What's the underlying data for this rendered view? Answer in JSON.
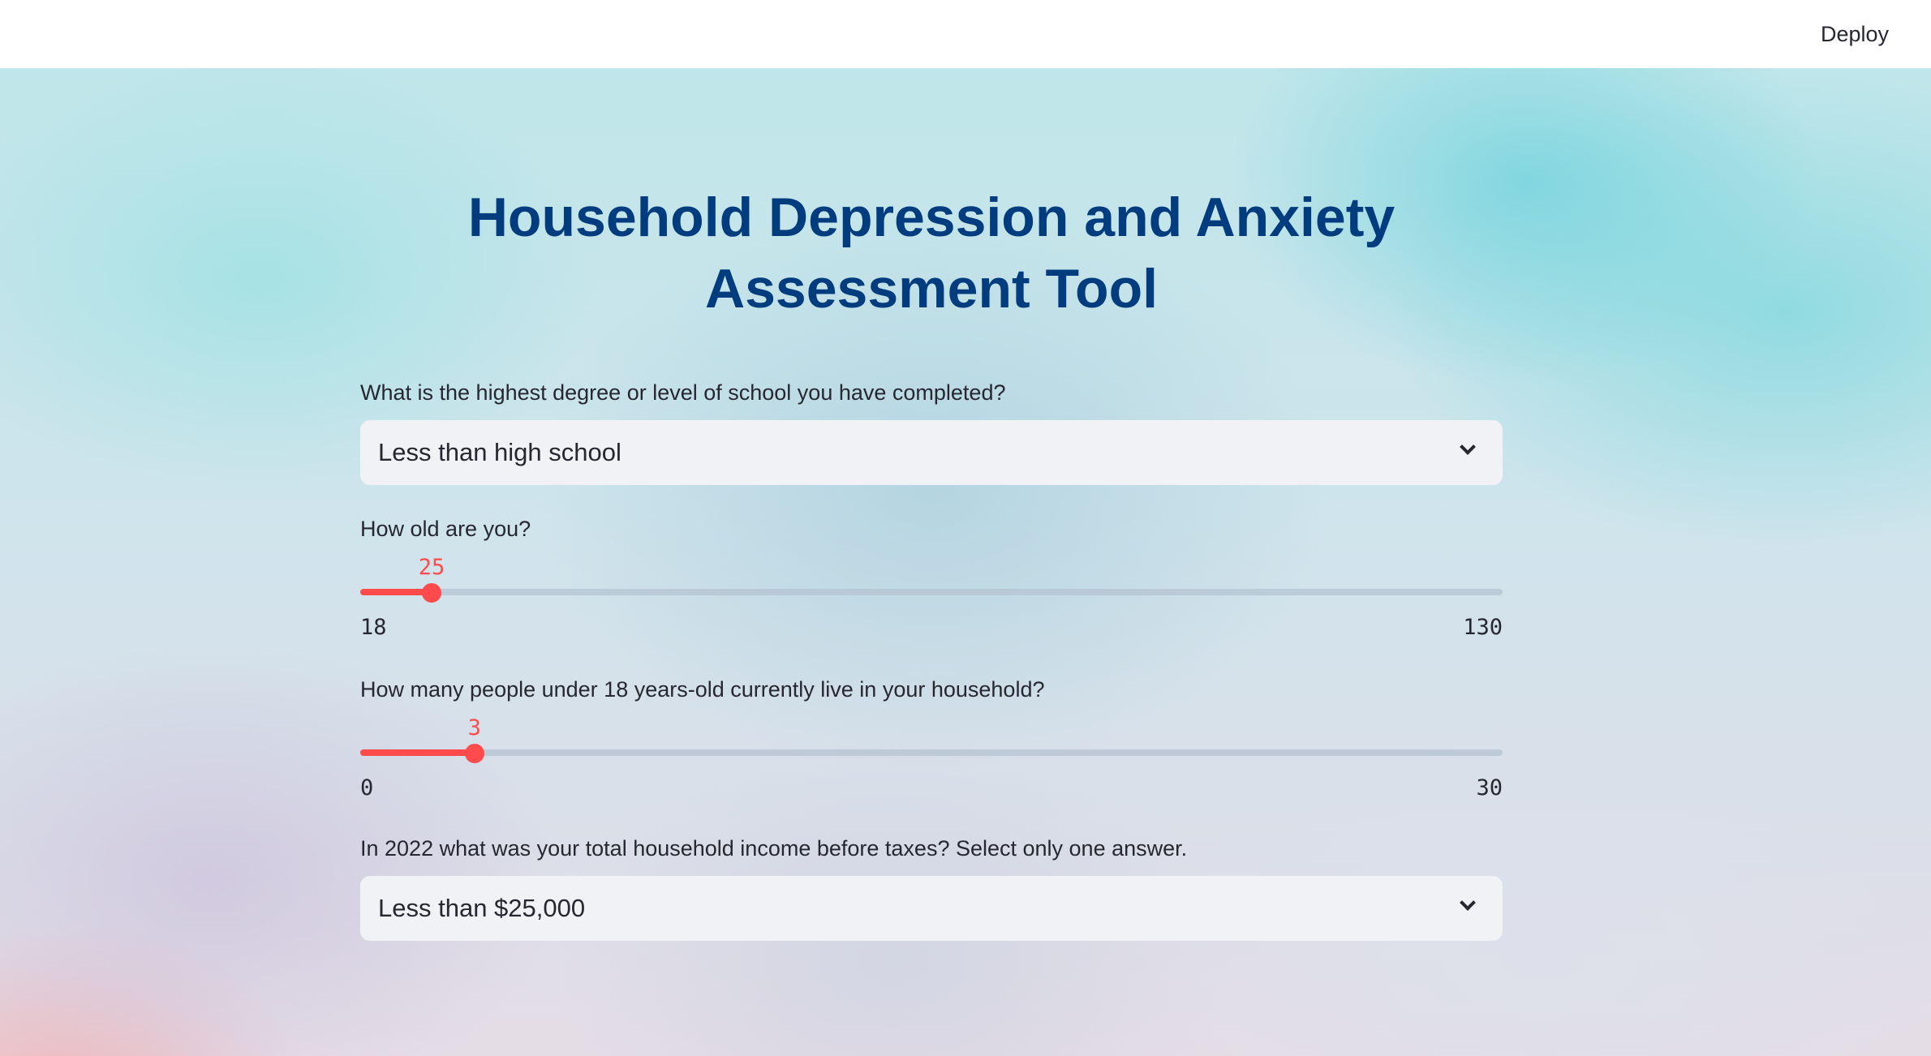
{
  "header": {
    "deploy_label": "Deploy"
  },
  "main": {
    "title": "Household Depression and Anxiety Assessment Tool",
    "education": {
      "label": "What is the highest degree or level of school you have completed?",
      "selected": "Less than high school"
    },
    "age": {
      "label": "How old are you?",
      "value": 25,
      "min": 18,
      "max": 130,
      "value_label": "25",
      "min_label": "18",
      "max_label": "130"
    },
    "children": {
      "label": "How many people under 18 years-old currently live in your household?",
      "value": 3,
      "min": 0,
      "max": 30,
      "value_label": "3",
      "min_label": "0",
      "max_label": "30"
    },
    "income": {
      "label": "In 2022 what was your total household income before taxes? Select only one answer.",
      "selected": "Less than $25,000"
    }
  },
  "colors": {
    "title": "#003c7e",
    "accent": "#ff4b4b",
    "select_bg": "#f0f2f6"
  }
}
